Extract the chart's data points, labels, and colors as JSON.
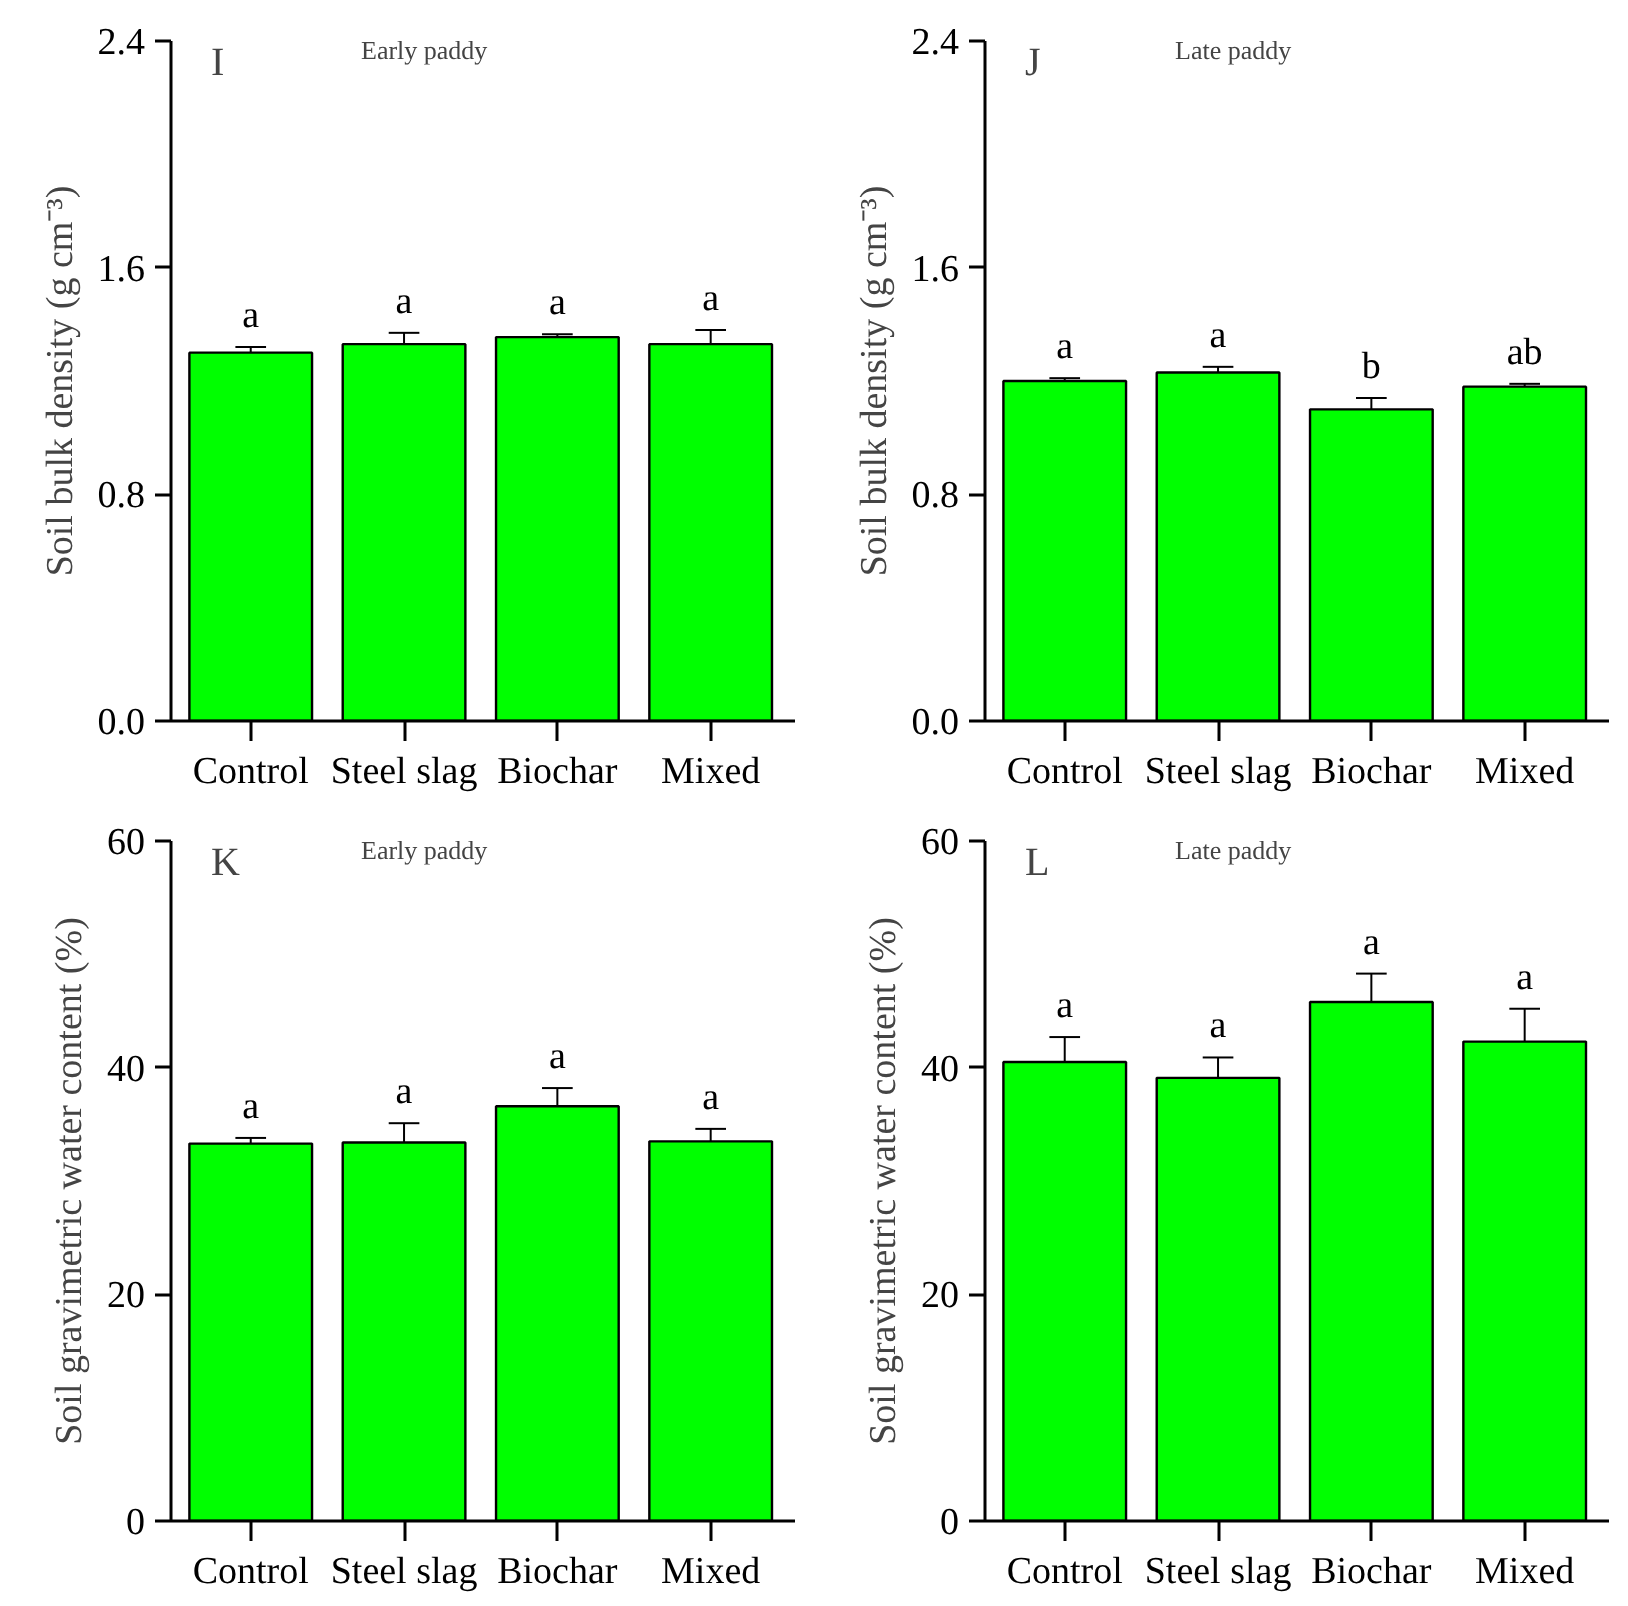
{
  "chart_data": [
    {
      "type": "bar",
      "title": "I",
      "subtitle": "Early paddy",
      "ylabel": "Soil bulk density (g cm⁻³)",
      "categories": [
        "Control",
        "Steel slag",
        "Biochar",
        "Mixed"
      ],
      "values": [
        1.3,
        1.33,
        1.355,
        1.33
      ],
      "errors": [
        [
          1.3,
          1.32
        ],
        [
          1.33,
          1.37
        ],
        [
          1.355,
          1.365
        ],
        [
          1.33,
          1.38
        ]
      ],
      "color": "#00ff00",
      "ylim": [
        0,
        2.4
      ],
      "yticks": [
        {
          "value": 0,
          "label": "0.0"
        },
        {
          "value": 0.8,
          "label": "0.8"
        },
        {
          "value": 1.6,
          "label": "1.6"
        },
        {
          "value": 2.4,
          "label": "2.4"
        }
      ],
      "annotations": [
        {
          "text": "a",
          "x": "Control",
          "y": 1.32
        },
        {
          "text": "a",
          "x": "Steel slag",
          "y": 1.37
        },
        {
          "text": "a",
          "x": "Biochar",
          "y": 1.365
        },
        {
          "text": "a",
          "x": "Mixed",
          "y": 1.38
        }
      ]
    },
    {
      "type": "bar",
      "title": "J",
      "subtitle": "Late paddy",
      "ylabel": "Soil bulk density (g cm⁻³)",
      "categories": [
        "Control",
        "Steel slag",
        "Biochar",
        "Mixed"
      ],
      "values": [
        1.2,
        1.23,
        1.1,
        1.18
      ],
      "errors": [
        [
          1.2,
          1.21
        ],
        [
          1.23,
          1.25
        ],
        [
          1.1,
          1.14
        ],
        [
          1.18,
          1.19
        ]
      ],
      "color": "#00ff00",
      "ylim": [
        0,
        2.4
      ],
      "yticks": [
        {
          "value": 0,
          "label": "0.0"
        },
        {
          "value": 0.8,
          "label": "0.8"
        },
        {
          "value": 1.6,
          "label": "1.6"
        },
        {
          "value": 2.4,
          "label": "2.4"
        }
      ],
      "annotations": [
        {
          "text": "a",
          "x": "Control",
          "y": 1.21
        },
        {
          "text": "a",
          "x": "Steel slag",
          "y": 1.25
        },
        {
          "text": "b",
          "x": "Biochar",
          "y": 1.14
        },
        {
          "text": "ab",
          "x": "Mixed",
          "y": 1.19
        }
      ]
    },
    {
      "type": "bar",
      "title": "K",
      "subtitle": "Early paddy",
      "ylabel": "Soil gravimetric water content (%)",
      "categories": [
        "Control",
        "Steel slag",
        "Biochar",
        "Mixed"
      ],
      "values": [
        33.3,
        33.4,
        36.6,
        33.5
      ],
      "errors": [
        [
          33.3,
          33.8
        ],
        [
          33.4,
          35.1
        ],
        [
          36.6,
          38.2
        ],
        [
          33.5,
          34.6
        ]
      ],
      "color": "#00ff00",
      "ylim": [
        0,
        60
      ],
      "yticks": [
        0,
        20,
        40,
        60
      ],
      "annotations": [
        {
          "text": "a",
          "x": "Control",
          "y": 33.8
        },
        {
          "text": "a",
          "x": "Steel slag",
          "y": 35.1
        },
        {
          "text": "a",
          "x": "Biochar",
          "y": 38.2
        },
        {
          "text": "a",
          "x": "Mixed",
          "y": 34.6
        }
      ]
    },
    {
      "type": "bar",
      "title": "L",
      "subtitle": "Late paddy",
      "ylabel": "Soil gravimetric water content (%)",
      "categories": [
        "Control",
        "Steel slag",
        "Biochar",
        "Mixed"
      ],
      "values": [
        40.5,
        39.1,
        45.8,
        42.3
      ],
      "errors": [
        [
          40.5,
          42.7
        ],
        [
          39.1,
          40.9
        ],
        [
          45.8,
          48.3
        ],
        [
          42.3,
          45.2
        ]
      ],
      "color": "#00ff00",
      "ylim": [
        0,
        60
      ],
      "yticks": [
        0,
        20,
        40,
        60
      ],
      "annotations": [
        {
          "text": "a",
          "x": "Control",
          "y": 42.7
        },
        {
          "text": "a",
          "x": "Steel slag",
          "y": 40.9
        },
        {
          "text": "a",
          "x": "Biochar",
          "y": 48.3
        },
        {
          "text": "a",
          "x": "Mixed",
          "y": 45.2
        }
      ]
    }
  ]
}
